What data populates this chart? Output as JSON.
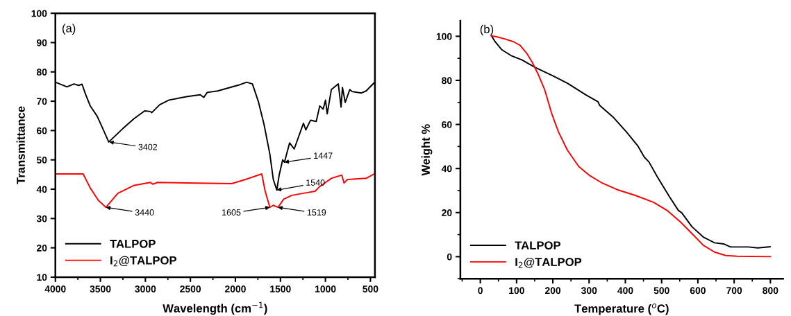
{
  "chart_data": [
    {
      "type": "line",
      "xlabel": "Wavelength (cm$^{−1}$)",
      "ylabel": "Transmittance",
      "xlim": [
        4000,
        450
      ],
      "xticks": [
        4000,
        3500,
        3000,
        2500,
        2000,
        1500,
        1000,
        500
      ],
      "ylim": [
        10,
        100
      ],
      "yticks": [
        10,
        20,
        30,
        40,
        50,
        60,
        70,
        80,
        90,
        100
      ],
      "legend": "bottom left",
      "grid": false,
      "annotations": [
        "(a)",
        {
          "text": "3402",
          "x": 3402,
          "y": 56.1
        },
        {
          "text": "3440",
          "x": 3438,
          "y": 33.8
        },
        {
          "text": "1447",
          "x": 1455,
          "y": 49.2
        },
        {
          "text": "1540",
          "x": 1540,
          "y": 39.7
        },
        {
          "text": "1605",
          "x": 1617,
          "y": 33.8
        },
        {
          "text": "1519",
          "x": 1527,
          "y": 33.8
        }
      ],
      "series": [
        {
          "name": "TALPOP",
          "color": "#000000",
          "x": [
            4000,
            3871,
            3794,
            3742,
            3704,
            3665,
            3614,
            3536,
            3472,
            3407,
            3253,
            3124,
            3008,
            2944,
            2930,
            2841,
            2738,
            2532,
            2390,
            2352,
            2313,
            2197,
            1965,
            1875,
            1811,
            1746,
            1682,
            1617,
            1579,
            1540,
            1514,
            1475,
            1455,
            1398,
            1347,
            1244,
            1218,
            1166,
            1102,
            1063,
            1025,
            999,
            980,
            934,
            857,
            826,
            811,
            780,
            729,
            703,
            600,
            548,
            458
          ],
          "values": [
            76.5,
            74.9,
            75.9,
            75.4,
            75.8,
            72.4,
            68.5,
            64.9,
            60.6,
            56.1,
            60.6,
            64.1,
            66.7,
            66.5,
            66.1,
            68.8,
            70.4,
            71.6,
            72.2,
            71.3,
            73.0,
            73.5,
            75.5,
            76.5,
            75.9,
            70.0,
            62.1,
            51.9,
            43.3,
            39.7,
            44.8,
            50.0,
            49.2,
            55.8,
            53.7,
            62.5,
            60.2,
            63.5,
            63.1,
            68.4,
            67.3,
            70.4,
            65.7,
            74.0,
            75.9,
            68.0,
            74.7,
            69.6,
            74.0,
            73.3,
            72.8,
            73.5,
            76.3
          ]
        },
        {
          "name": "I$_{2}$@TALPOP",
          "color": "#ff0000",
          "x": [
            4000,
            3691,
            3614,
            3523,
            3438,
            3305,
            3124,
            2944,
            2918,
            2866,
            2042,
            1888,
            1707,
            1669,
            1617,
            1579,
            1527,
            1463,
            1373,
            1244,
            1115,
            1063,
            934,
            818,
            793,
            755,
            548,
            458
          ],
          "values": [
            45.2,
            45.2,
            40.5,
            36.2,
            33.8,
            38.6,
            41.3,
            42.3,
            41.7,
            42.3,
            41.9,
            43.3,
            45.2,
            39.3,
            33.8,
            34.5,
            33.8,
            36.6,
            37.9,
            38.6,
            39.3,
            40.9,
            43.7,
            44.8,
            42.1,
            43.3,
            43.7,
            45.2
          ]
        }
      ]
    },
    {
      "type": "line",
      "xlabel": "Temperature ($^{o}$C)",
      "ylabel": "Weight %",
      "xlim": [
        -55,
        835
      ],
      "xticks": [
        0,
        100,
        200,
        300,
        400,
        500,
        600,
        700,
        800
      ],
      "ylim": [
        -10,
        107
      ],
      "yticks": [
        0,
        20,
        40,
        60,
        80,
        100
      ],
      "legend": "bottom left",
      "grid": false,
      "annotations": [
        "(b)"
      ],
      "series": [
        {
          "name": "TALPOP",
          "color": "#000000",
          "x": [
            31,
            40.6,
            59.3,
            84.3,
            115.5,
            149.8,
            202.9,
            240.3,
            290.3,
            324.6,
            329,
            365.2,
            402.6,
            433.8,
            452.6,
            465,
            490,
            521.2,
            546.2,
            555.6,
            583.6,
            614.9,
            646,
            671,
            690,
            740,
            765,
            799
          ],
          "values": [
            100.2,
            97.6,
            93.9,
            91.3,
            89.2,
            86.0,
            81.8,
            78.7,
            73.5,
            70.3,
            68.7,
            63.5,
            56.7,
            50.4,
            45.1,
            43.0,
            35.7,
            27.3,
            21.0,
            19.9,
            13.6,
            8.9,
            6.3,
            5.8,
            4.4,
            4.4,
            4.0,
            4.5
          ]
        },
        {
          "name": "I$_{2}$@TALPOP",
          "color": "#ff0000",
          "x": [
            31,
            46.8,
            65.5,
            90.5,
            109.2,
            128,
            143.6,
            159.2,
            177.9,
            196.6,
            215.4,
            240.3,
            271.5,
            302.7,
            334,
            377.7,
            427.6,
            477.5,
            515,
            552.4,
            583.6,
            614.9,
            646,
            677,
            708.5,
            800
          ],
          "values": [
            100.2,
            99.7,
            98.9,
            97.6,
            96.0,
            92.3,
            88.1,
            82.9,
            75.6,
            65.1,
            56.7,
            48.3,
            40.9,
            36.7,
            33.6,
            30.4,
            27.8,
            24.7,
            21.0,
            15.7,
            10.5,
            5.2,
            2.1,
            0.5,
            0.2,
            0.0
          ]
        }
      ]
    }
  ]
}
